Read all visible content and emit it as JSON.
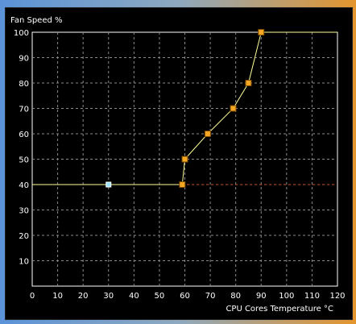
{
  "chart_data": {
    "type": "line",
    "title": "Fan Speed %",
    "xlabel": "CPU Cores Temperature °C",
    "ylabel": "Fan Speed %",
    "xlim": [
      0,
      120
    ],
    "ylim": [
      0,
      100
    ],
    "xticks": [
      0,
      10,
      20,
      30,
      40,
      50,
      60,
      70,
      80,
      90,
      100,
      110,
      120
    ],
    "yticks": [
      10,
      20,
      30,
      40,
      50,
      60,
      70,
      80,
      90,
      100
    ],
    "grid": true,
    "series": [
      {
        "points": [
          {
            "x": 0,
            "y": 40
          },
          {
            "x": 59,
            "y": 40
          },
          {
            "x": 60,
            "y": 50
          },
          {
            "x": 69,
            "y": 60
          },
          {
            "x": 79,
            "y": 70
          },
          {
            "x": 85,
            "y": 80
          },
          {
            "x": 90,
            "y": 100
          },
          {
            "x": 120,
            "y": 100
          }
        ],
        "control_points": [
          {
            "x": 59,
            "y": 40
          },
          {
            "x": 60,
            "y": 50
          },
          {
            "x": 69,
            "y": 60
          },
          {
            "x": 79,
            "y": 70
          },
          {
            "x": 85,
            "y": 80
          },
          {
            "x": 90,
            "y": 100
          }
        ],
        "color": "#ffff99",
        "marker_color": "#f5a623"
      }
    ],
    "current": {
      "x": 30,
      "y": 40,
      "color": "#9fe7ff"
    },
    "reference_line": {
      "y": 40,
      "x_from": 59,
      "x_to": 120,
      "color": "#c8502a"
    }
  }
}
